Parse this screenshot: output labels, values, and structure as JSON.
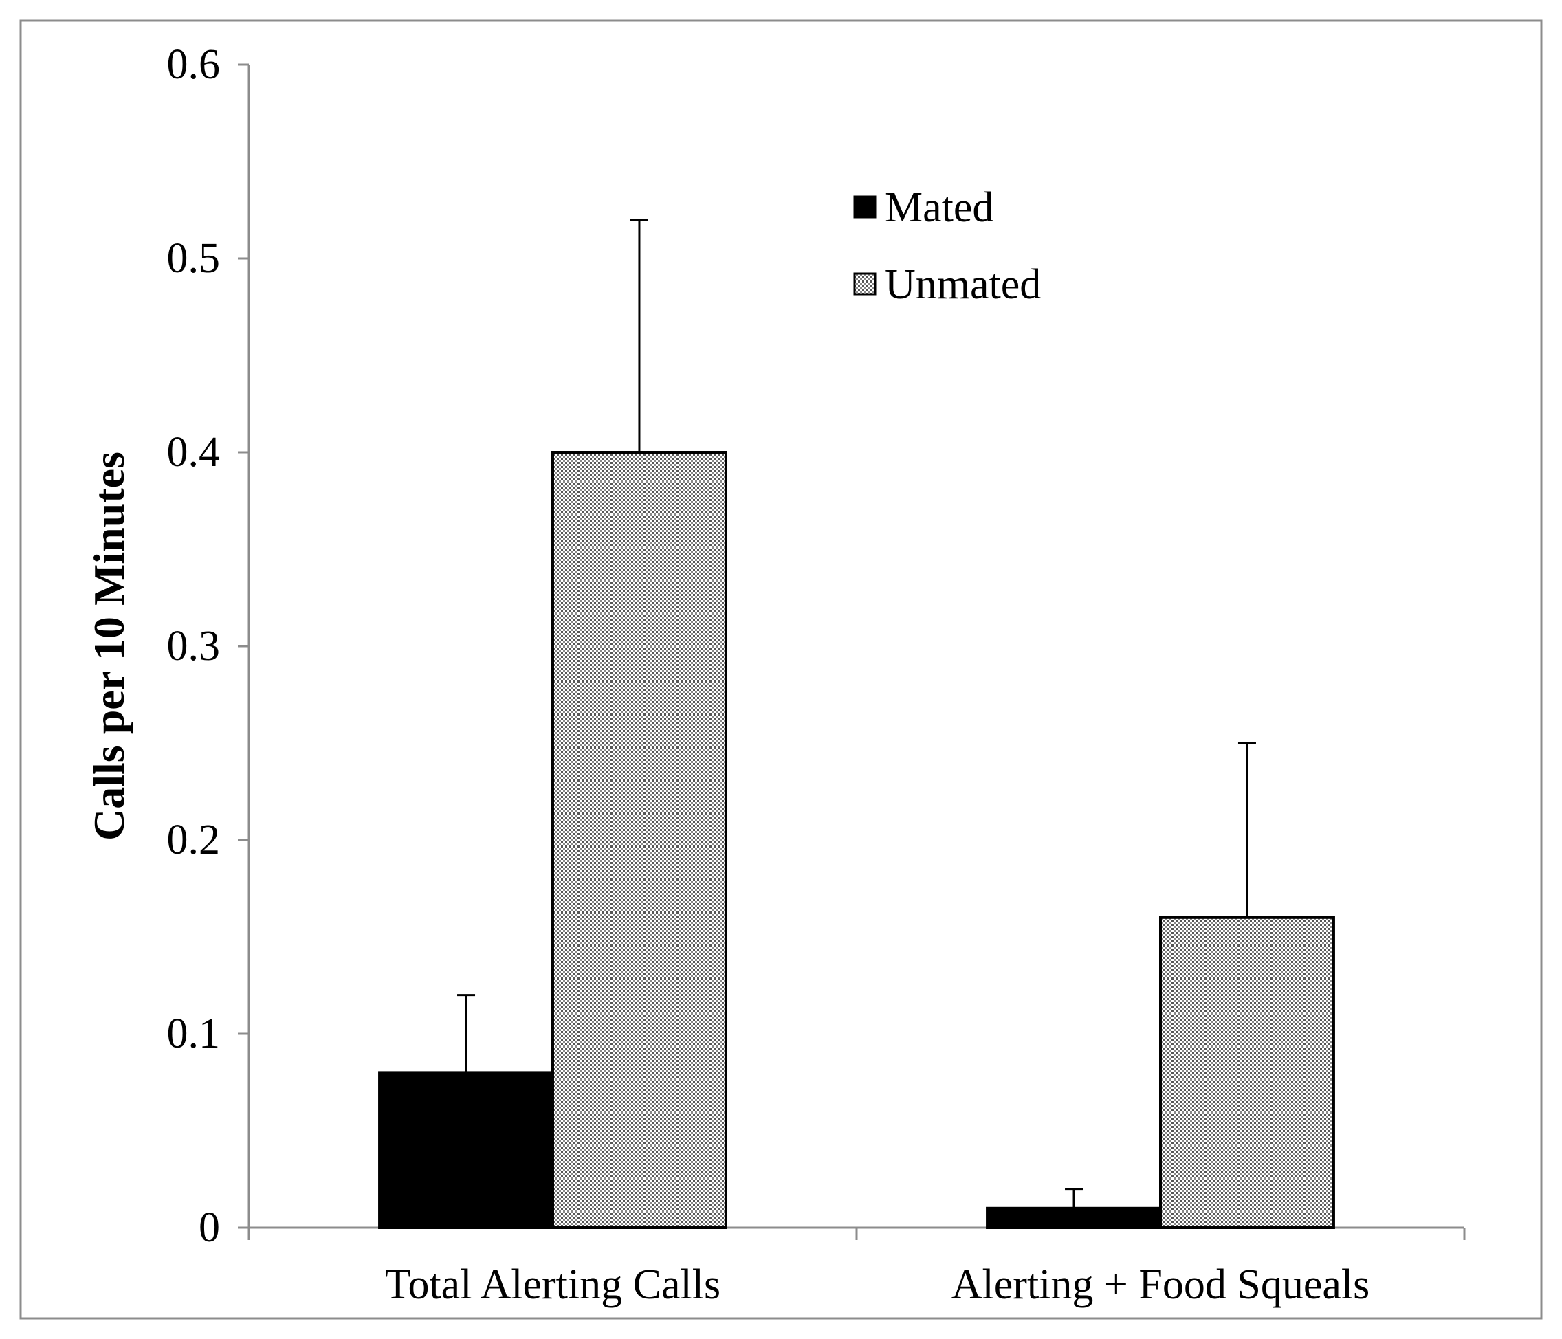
{
  "chart_data": {
    "type": "bar",
    "title": "",
    "xlabel": "",
    "ylabel": "Calls per 10 Minutes",
    "ylim": [
      0,
      0.6
    ],
    "yticks": [
      0,
      0.1,
      0.2,
      0.3,
      0.4,
      0.5,
      0.6
    ],
    "ytick_labels": [
      "0",
      "0.1",
      "0.2",
      "0.3",
      "0.4",
      "0.5",
      "0.6"
    ],
    "grid": false,
    "categories": [
      "Total Alerting Calls",
      "Alerting + Food Squeals"
    ],
    "series": [
      {
        "name": "Mated",
        "values": [
          0.08,
          0.01
        ],
        "error_upper": [
          0.12,
          0.02
        ],
        "color": "#000000",
        "pattern": "solid"
      },
      {
        "name": "Unmated",
        "values": [
          0.4,
          0.16
        ],
        "error_upper": [
          0.52,
          0.25
        ],
        "color": "#b8b8b8",
        "pattern": "dotted"
      }
    ],
    "legend": {
      "position": "top-center",
      "entries": [
        "Mated",
        "Unmated"
      ]
    }
  }
}
